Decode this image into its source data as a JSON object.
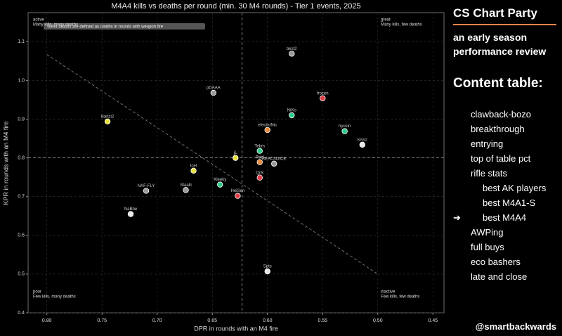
{
  "chart_data": {
    "type": "scatter",
    "title": "M4A4 kills vs deaths per round (min. 30 M4 rounds) - Tier 1 events, 2025",
    "x_label": "DPR in rounds with an M4 fire",
    "y_label": "KPR in rounds with an M4 fire",
    "note": "M4A4 deaths are defined as deaths in rounds with weapon fire",
    "corners": [
      {
        "title": "active",
        "text": "Many kills, many deaths"
      },
      {
        "title": "great",
        "text": "Many kills, few deaths"
      },
      {
        "title": "poor",
        "text": "Few kills, many deaths"
      },
      {
        "title": "inactive",
        "text": "Few kills, few deaths"
      }
    ],
    "xlim": [
      0.817,
      0.44
    ],
    "ylim": [
      0.4,
      1.175
    ],
    "xticks": [
      {
        "value": 0.8,
        "label": "0.80"
      },
      0.75,
      {
        "value": 0.7,
        "label": "0.70"
      },
      0.65,
      {
        "value": 0.6,
        "label": "0.60"
      },
      0.55,
      {
        "value": 0.5,
        "label": "0.50"
      },
      0.45
    ],
    "yticks": [
      0.4,
      0.5,
      0.6,
      0.7,
      0.8,
      0.9,
      {
        "value": 1.0,
        "label": "1.0"
      },
      1.1
    ],
    "grid": true,
    "mean_x": 0.623,
    "mean_y": 0.8,
    "reference_line": {
      "x": [
        0.8,
        0.5
      ],
      "y": [
        1.067,
        0.5
      ]
    },
    "series": [
      {
        "labels": [
          "best2",
          "pDAAA",
          "frozen",
          "NiKo",
          "Banzi2",
          "electroNic",
          "hyusin",
          "kisso",
          "Tebrs",
          "jL",
          "Rebl",
          "BEAChOICE",
          "Icet",
          "Qnk",
          "Kleeky",
          "Staalli",
          "NAF-FLY",
          "HeiSen",
          "NaBbe",
          "Spts"
        ],
        "x": [
          0.578,
          0.649,
          0.55,
          0.578,
          0.745,
          0.6,
          0.53,
          0.514,
          0.607,
          0.629,
          0.607,
          0.594,
          0.667,
          0.607,
          0.643,
          0.674,
          0.71,
          0.627,
          0.724,
          0.6
        ],
        "values": [
          1.069,
          0.968,
          0.954,
          0.91,
          0.894,
          0.872,
          0.869,
          0.834,
          0.818,
          0.8,
          0.789,
          0.785,
          0.767,
          0.749,
          0.731,
          0.717,
          0.715,
          0.702,
          0.655,
          0.507
        ],
        "colors": [
          "#9a9a9a",
          "#9a9a9a",
          "#e0404a",
          "#2ecc8a",
          "#e8e040",
          "#e88a3a",
          "#2ecc8a",
          "#e8e8e8",
          "#2ecc8a",
          "#e8e040",
          "#e88a3a",
          "#9a9a9a",
          "#e8e040",
          "#e0404a",
          "#2ecc8a",
          "#9a9a9a",
          "#9a9a9a",
          "#e0404a",
          "#e8e8e8",
          "#e8e8e8"
        ]
      }
    ]
  },
  "sidebar": {
    "title": "CS Chart Party",
    "subtitle": "an early season performance review",
    "toc_title": "Content table:",
    "items": [
      {
        "label": "clawback-bozo",
        "level": 1
      },
      {
        "label": "breakthrough",
        "level": 1
      },
      {
        "label": "entrying",
        "level": 1
      },
      {
        "label": "top of table pct",
        "level": 1
      },
      {
        "label": "rifle stats",
        "level": 1
      },
      {
        "label": "best AK players",
        "level": 2
      },
      {
        "label": "best M4A1-S",
        "level": 2
      },
      {
        "label": "best M4A4",
        "level": 2
      },
      {
        "label": "AWPing",
        "level": 1
      },
      {
        "label": "full buys",
        "level": 1
      },
      {
        "label": "eco bashers",
        "level": 1
      },
      {
        "label": "late and close",
        "level": 1
      }
    ],
    "current": 7,
    "current_marker": "➔",
    "handle": "@smartbackwards"
  }
}
